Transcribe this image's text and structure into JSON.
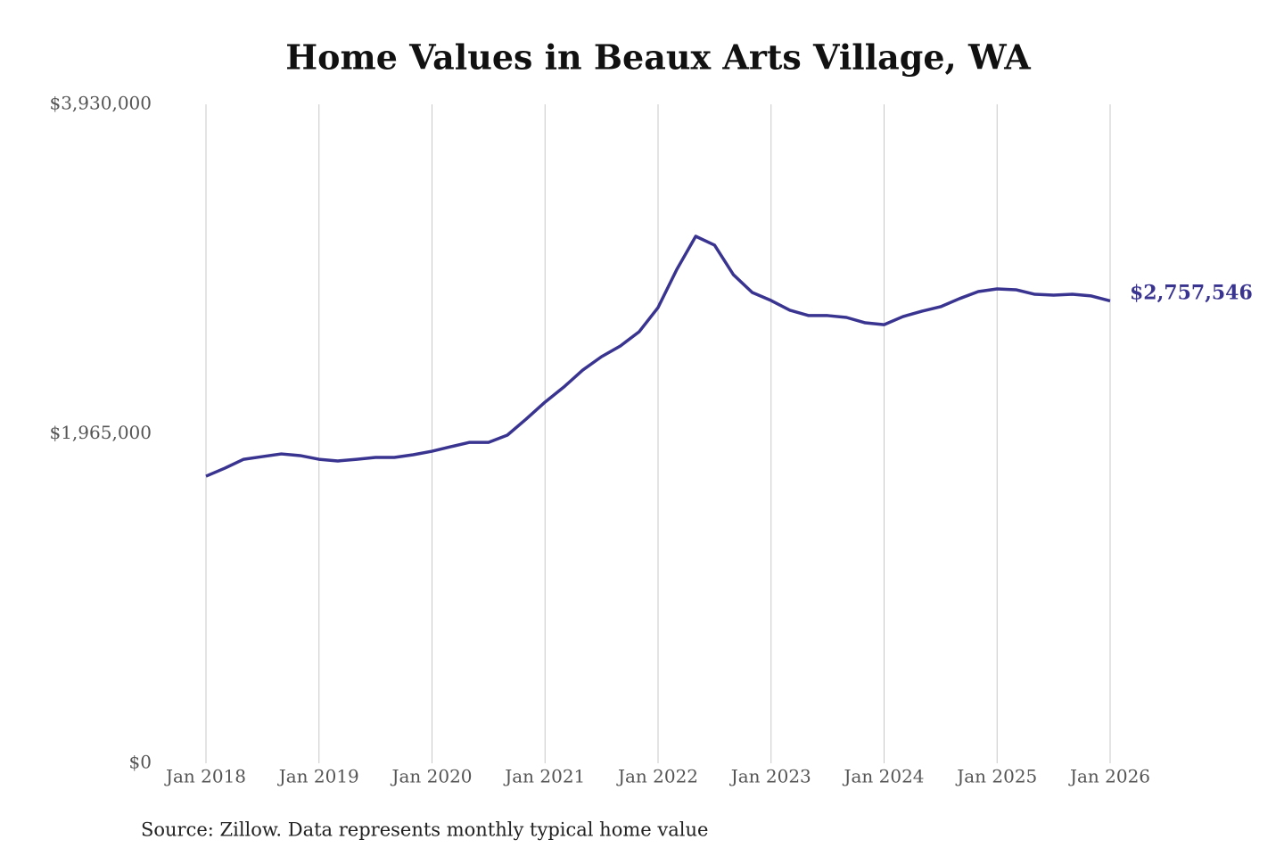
{
  "chart_data": {
    "type": "line",
    "title": "Home Values in Beaux Arts Village, WA",
    "source": "Source: Zillow. Data represents monthly typical home value",
    "x": [
      "2018-01",
      "2018-03",
      "2018-05",
      "2018-07",
      "2018-09",
      "2018-11",
      "2019-01",
      "2019-03",
      "2019-05",
      "2019-07",
      "2019-09",
      "2019-11",
      "2020-01",
      "2020-03",
      "2020-05",
      "2020-07",
      "2020-09",
      "2020-11",
      "2021-01",
      "2021-03",
      "2021-05",
      "2021-07",
      "2021-09",
      "2021-11",
      "2022-01",
      "2022-03",
      "2022-05",
      "2022-07",
      "2022-09",
      "2022-11",
      "2023-01",
      "2023-03",
      "2023-05",
      "2023-07",
      "2023-09",
      "2023-11",
      "2024-01",
      "2024-03",
      "2024-05",
      "2024-07",
      "2024-09",
      "2024-11",
      "2025-01",
      "2025-03",
      "2025-05",
      "2025-07",
      "2025-09",
      "2025-11",
      "2026-01"
    ],
    "series": [
      {
        "name": "Home value",
        "color": "#3a3491",
        "values": [
          1712000,
          1760000,
          1813000,
          1829000,
          1845000,
          1835000,
          1813000,
          1803000,
          1813000,
          1824000,
          1824000,
          1840000,
          1861000,
          1888000,
          1914000,
          1914000,
          1957000,
          2053000,
          2154000,
          2244000,
          2345000,
          2425000,
          2489000,
          2574000,
          2718000,
          2946000,
          3143000,
          3090000,
          2914000,
          2808000,
          2760000,
          2702000,
          2670000,
          2670000,
          2659000,
          2627000,
          2616000,
          2664000,
          2696000,
          2723000,
          2771000,
          2813000,
          2829000,
          2824000,
          2797000,
          2792000,
          2797000,
          2787000,
          2757546
        ],
        "value_labels": [
          null,
          null,
          null,
          null,
          null,
          null,
          null,
          null,
          null,
          null,
          null,
          null,
          null,
          null,
          null,
          null,
          null,
          null,
          null,
          null,
          null,
          null,
          null,
          null,
          null,
          null,
          null,
          null,
          null,
          null,
          null,
          null,
          null,
          null,
          null,
          null,
          null,
          null,
          null,
          null,
          null,
          null,
          null,
          null,
          null,
          null,
          null,
          null,
          "$2,757,546"
        ]
      }
    ],
    "xlim": [
      "2018-01",
      "2026-01"
    ],
    "xticks": [
      {
        "value": "2018-01",
        "label": "Jan 2018"
      },
      {
        "value": "2019-01",
        "label": "Jan 2019"
      },
      {
        "value": "2020-01",
        "label": "Jan 2020"
      },
      {
        "value": "2021-01",
        "label": "Jan 2021"
      },
      {
        "value": "2022-01",
        "label": "Jan 2022"
      },
      {
        "value": "2023-01",
        "label": "Jan 2023"
      },
      {
        "value": "2024-01",
        "label": "Jan 2024"
      },
      {
        "value": "2025-01",
        "label": "Jan 2025"
      },
      {
        "value": "2026-01",
        "label": "Jan 2026"
      }
    ],
    "ylim": [
      0,
      3930000
    ],
    "yticks": [
      {
        "value": 0,
        "label": "$0"
      },
      {
        "value": 1965000,
        "label": "$1,965,000"
      },
      {
        "value": 3930000,
        "label": "$3,930,000"
      }
    ],
    "grid": "x"
  }
}
